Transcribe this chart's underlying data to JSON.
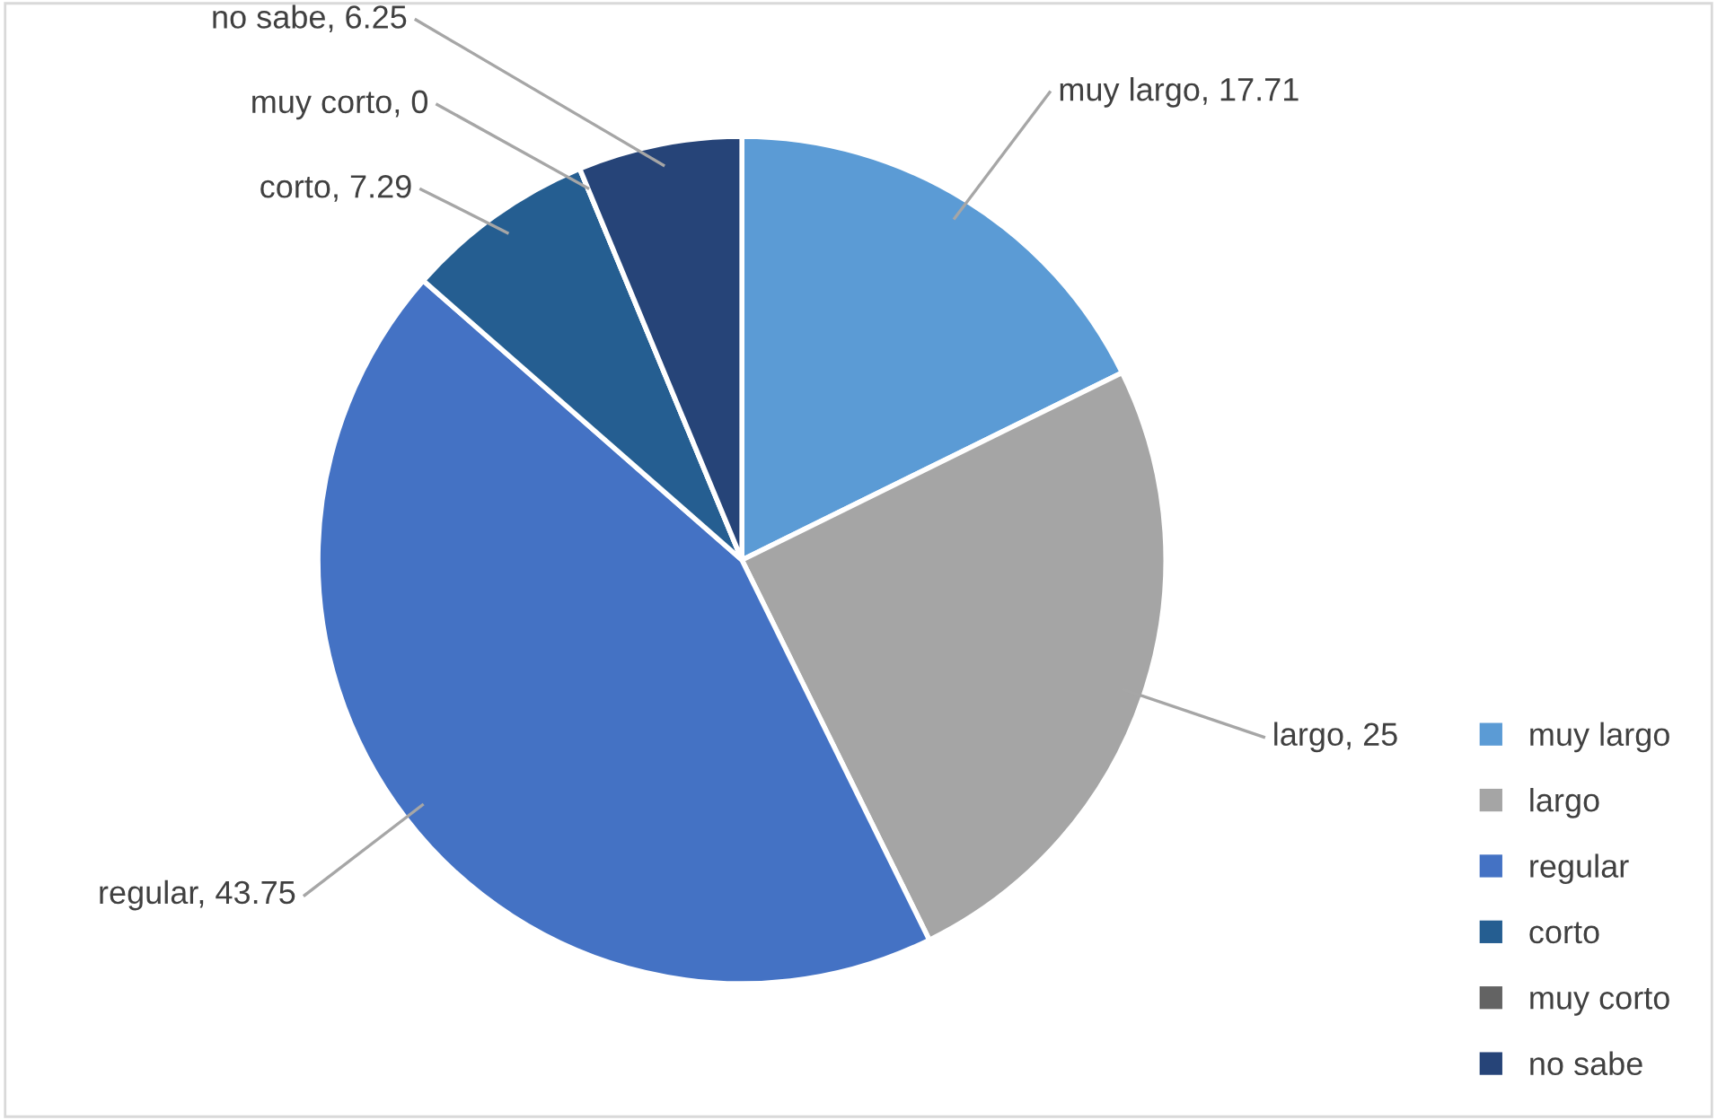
{
  "chart_data": {
    "type": "pie",
    "categories": [
      "muy largo",
      "largo",
      "regular",
      "corto",
      "muy corto",
      "no sabe"
    ],
    "values": [
      17.71,
      25,
      43.75,
      7.29,
      0,
      6.25
    ],
    "colors": [
      "#5b9bd5",
      "#a5a5a5",
      "#4472c4",
      "#255e91",
      "#636363",
      "#264478"
    ],
    "value_labels": [
      "muy largo, 17.71",
      "largo, 25",
      "regular, 43.75",
      "corto, 7.29",
      "muy corto, 0",
      "no sabe, 6.25"
    ],
    "legend": "bottom right"
  }
}
